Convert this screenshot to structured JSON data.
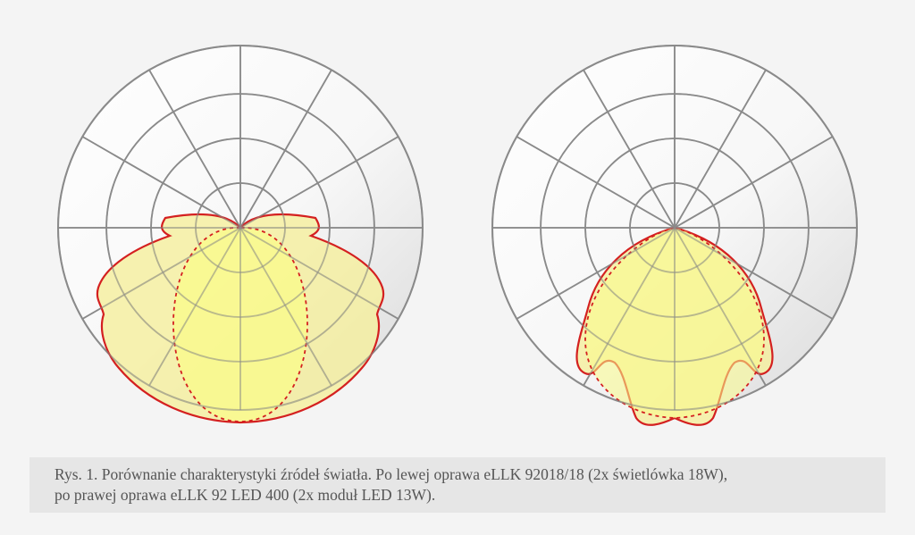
{
  "caption": {
    "line1": "Rys. 1. Porównanie charakterystyki źródeł światła. Po lewej oprawa eLLK 92018/18 (2x świetlówka 18W),",
    "line2": "po prawej oprawa eLLK 92 LED 400 (2x moduł LED 13W)."
  },
  "colors": {
    "background": "#f4f4f4",
    "grid_line": "#8a8a8a",
    "grid_fill": "#e3e3e3",
    "curve_line": "#d42020",
    "curve_fill_light": "#f5ef9c",
    "curve_fill_core": "#fafb8a",
    "caption_box": "#e6e6e6",
    "caption_text": "#555555"
  }
}
